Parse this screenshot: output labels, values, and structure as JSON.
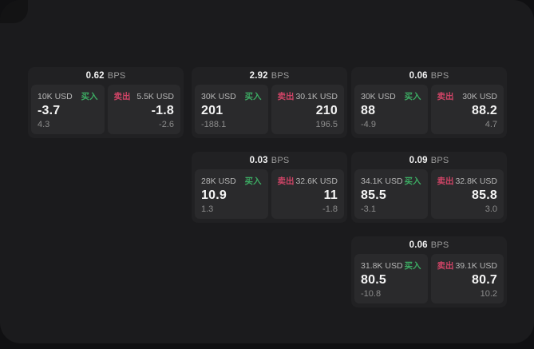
{
  "labels": {
    "bps": "BPS",
    "buy": "买入",
    "sell": "卖出"
  },
  "colors": {
    "outer_bg": "#101012",
    "surface_bg": "#1b1b1d",
    "card_bg": "#212123",
    "panel_bg": "#2a2a2c",
    "buy_green": "#3cab63",
    "sell_red": "#cf4466",
    "text_primary": "#f4f4f4",
    "text_label": "#b6b6b6",
    "text_dim": "#8c8c8c"
  },
  "cards": [
    {
      "bps": "0.62",
      "buy": {
        "amount": "10K USD",
        "price": "-3.7",
        "delta": "4.3"
      },
      "sell": {
        "amount": "5.5K USD",
        "price": "-1.8",
        "delta": "-2.6"
      }
    },
    {
      "bps": "2.92",
      "buy": {
        "amount": "30K USD",
        "price": "201",
        "delta": "-188.1"
      },
      "sell": {
        "amount": "30.1K USD",
        "price": "210",
        "delta": "196.5"
      }
    },
    {
      "bps": "0.06",
      "buy": {
        "amount": "30K USD",
        "price": "88",
        "delta": "-4.9"
      },
      "sell": {
        "amount": "30K USD",
        "price": "88.2",
        "delta": "4.7"
      }
    },
    {
      "bps": "0.03",
      "buy": {
        "amount": "28K USD",
        "price": "10.9",
        "delta": "1.3"
      },
      "sell": {
        "amount": "32.6K USD",
        "price": "11",
        "delta": "-1.8"
      }
    },
    {
      "bps": "0.09",
      "buy": {
        "amount": "34.1K USD",
        "price": "85.5",
        "delta": "-3.1"
      },
      "sell": {
        "amount": "32.8K USD",
        "price": "85.8",
        "delta": "3.0"
      }
    },
    {
      "bps": "0.06",
      "buy": {
        "amount": "31.8K USD",
        "price": "80.5",
        "delta": "-10.8"
      },
      "sell": {
        "amount": "39.1K USD",
        "price": "80.7",
        "delta": "10.2"
      }
    }
  ]
}
